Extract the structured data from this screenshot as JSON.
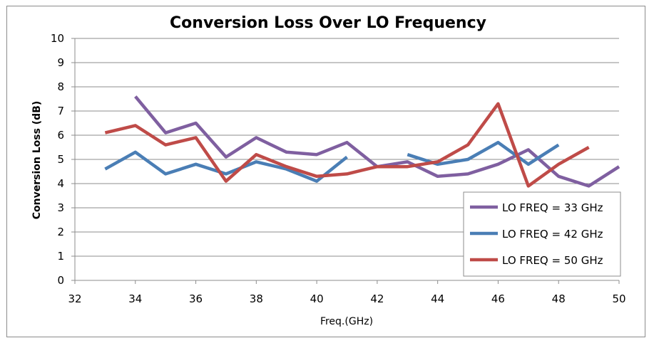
{
  "chart_data": {
    "type": "line",
    "title": "Conversion Loss Over LO Frequency",
    "xlabel": "Freq.(GHz)",
    "ylabel": "Conversion Loss (dB)",
    "xlim": [
      32,
      50
    ],
    "ylim": [
      0,
      10
    ],
    "x_ticks": [
      32,
      34,
      36,
      38,
      40,
      42,
      44,
      46,
      48,
      50
    ],
    "y_ticks": [
      0,
      1,
      2,
      3,
      4,
      5,
      6,
      7,
      8,
      9,
      10
    ],
    "grid": "horizontal",
    "legend_position": "bottom-right",
    "series": [
      {
        "name": "LO FREQ = 33 GHz",
        "color": "#7f5fa0",
        "points": [
          [
            34,
            7.6
          ],
          [
            35,
            6.1
          ],
          [
            36,
            6.5
          ],
          [
            37,
            5.1
          ],
          [
            38,
            5.9
          ],
          [
            39,
            5.3
          ],
          [
            40,
            5.2
          ],
          [
            41,
            5.7
          ],
          [
            42,
            4.7
          ],
          [
            43,
            4.9
          ],
          [
            44,
            4.3
          ],
          [
            45,
            4.4
          ],
          [
            46,
            4.8
          ],
          [
            47,
            5.4
          ],
          [
            48,
            4.3
          ],
          [
            49,
            3.9
          ],
          [
            50,
            4.7
          ]
        ]
      },
      {
        "name": "LO FREQ = 42 GHz",
        "color": "#4a7eb5",
        "segments": [
          [
            [
              33,
              4.6
            ],
            [
              34,
              5.3
            ],
            [
              35,
              4.4
            ],
            [
              36,
              4.8
            ],
            [
              37,
              4.4
            ],
            [
              38,
              4.9
            ],
            [
              39,
              4.6
            ],
            [
              40,
              4.1
            ],
            [
              41,
              5.1
            ]
          ],
          [
            [
              43,
              5.2
            ],
            [
              44,
              4.8
            ],
            [
              45,
              5.0
            ],
            [
              46,
              5.7
            ],
            [
              47,
              4.8
            ],
            [
              48,
              5.6
            ]
          ]
        ]
      },
      {
        "name": "LO FREQ = 50 GHz",
        "color": "#bf4b48",
        "points": [
          [
            33,
            6.1
          ],
          [
            34,
            6.4
          ],
          [
            35,
            5.6
          ],
          [
            36,
            5.9
          ],
          [
            37,
            4.1
          ],
          [
            38,
            5.2
          ],
          [
            39,
            4.7
          ],
          [
            40,
            4.3
          ],
          [
            41,
            4.4
          ],
          [
            42,
            4.7
          ],
          [
            43,
            4.7
          ],
          [
            44,
            4.9
          ],
          [
            45,
            5.6
          ],
          [
            46,
            7.3
          ],
          [
            47,
            3.9
          ],
          [
            48,
            4.8
          ],
          [
            49,
            5.5
          ]
        ]
      }
    ]
  }
}
